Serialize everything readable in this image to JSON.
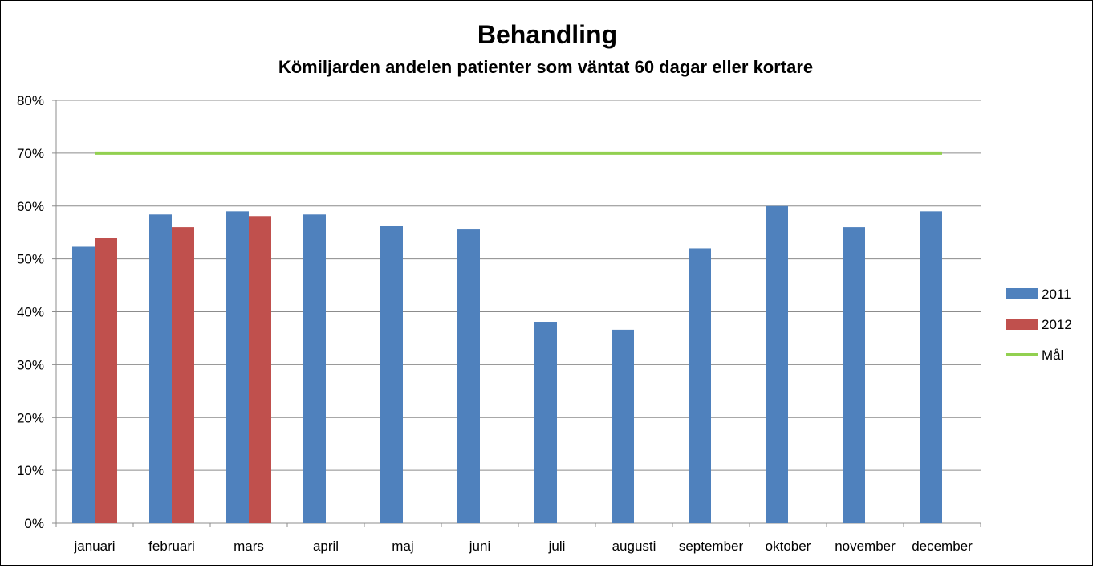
{
  "chart_data": {
    "type": "bar",
    "title": "Behandling",
    "subtitle": "Kömiljarden andelen patienter som väntat 60 dagar eller kortare",
    "categories": [
      "januari",
      "februari",
      "mars",
      "april",
      "maj",
      "juni",
      "juli",
      "augusti",
      "september",
      "oktober",
      "november",
      "december"
    ],
    "series": [
      {
        "name": "2011",
        "type": "bar",
        "color": "#4F81BD",
        "values": [
          0.523,
          0.584,
          0.59,
          0.584,
          0.563,
          0.557,
          0.381,
          0.366,
          0.52,
          0.6,
          0.56,
          0.59
        ]
      },
      {
        "name": "2012",
        "type": "bar",
        "color": "#C0504D",
        "values": [
          0.54,
          0.56,
          0.581,
          null,
          null,
          null,
          null,
          null,
          null,
          null,
          null,
          null
        ]
      },
      {
        "name": "Mål",
        "type": "line",
        "color": "#92D050",
        "values": [
          0.7,
          0.7,
          0.7,
          0.7,
          0.7,
          0.7,
          0.7,
          0.7,
          0.7,
          0.7,
          0.7,
          0.7
        ]
      }
    ],
    "ylim": [
      0,
      0.8
    ],
    "yticks": [
      0,
      0.1,
      0.2,
      0.3,
      0.4,
      0.5,
      0.6,
      0.7,
      0.8
    ],
    "ytick_labels": [
      "0%",
      "10%",
      "20%",
      "30%",
      "40%",
      "50%",
      "60%",
      "70%",
      "80%"
    ],
    "grid": true,
    "legend_position": "right",
    "xlabel": "",
    "ylabel": ""
  }
}
